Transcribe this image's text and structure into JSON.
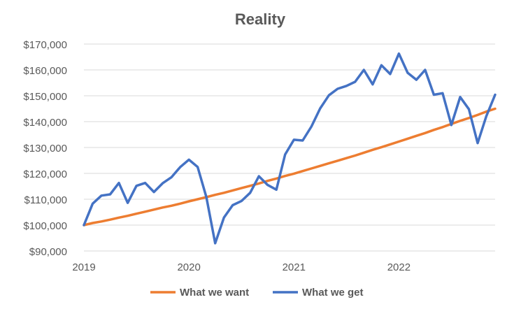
{
  "chart_data": {
    "type": "line",
    "title": "Reality",
    "xlabel": "",
    "ylabel": "",
    "x_start": "2019-01",
    "x_end": "2022-12",
    "xticks": [
      {
        "label": "2019",
        "date": "2019-01"
      },
      {
        "label": "2020",
        "date": "2020-01"
      },
      {
        "label": "2021",
        "date": "2021-01"
      },
      {
        "label": "2022",
        "date": "2022-01"
      }
    ],
    "ylim": [
      90000,
      170000
    ],
    "yticks": [
      {
        "value": 90000,
        "label": "$90,000"
      },
      {
        "value": 100000,
        "label": "$100,000"
      },
      {
        "value": 110000,
        "label": "$110,000"
      },
      {
        "value": 120000,
        "label": "$120,000"
      },
      {
        "value": 130000,
        "label": "$130,000"
      },
      {
        "value": 140000,
        "label": "$140,000"
      },
      {
        "value": 150000,
        "label": "$150,000"
      },
      {
        "value": 160000,
        "label": "$160,000"
      },
      {
        "value": 170000,
        "label": "$170,000"
      }
    ],
    "grid": true,
    "legend_position": "bottom",
    "series": [
      {
        "name": "What we want",
        "color": "#ED7D31",
        "x": [
          "2019-01",
          "2019-02",
          "2019-03",
          "2019-04",
          "2019-05",
          "2019-06",
          "2019-07",
          "2019-08",
          "2019-09",
          "2019-10",
          "2019-11",
          "2019-12",
          "2020-01",
          "2020-02",
          "2020-03",
          "2020-04",
          "2020-05",
          "2020-06",
          "2020-07",
          "2020-08",
          "2020-09",
          "2020-10",
          "2020-11",
          "2020-12",
          "2021-01",
          "2021-02",
          "2021-03",
          "2021-04",
          "2021-05",
          "2021-06",
          "2021-07",
          "2021-08",
          "2021-09",
          "2021-10",
          "2021-11",
          "2021-12",
          "2022-01",
          "2022-02",
          "2022-03",
          "2022-04",
          "2022-05",
          "2022-06",
          "2022-07",
          "2022-08",
          "2022-09",
          "2022-10",
          "2022-11",
          "2022-12"
        ],
        "values": [
          100000,
          100800,
          101400,
          102100,
          102900,
          103600,
          104400,
          105200,
          106000,
          106800,
          107500,
          108300,
          109200,
          110000,
          110800,
          111700,
          112500,
          113400,
          114300,
          115200,
          116100,
          117100,
          118000,
          119000,
          119900,
          120900,
          121900,
          122900,
          123900,
          124900,
          125900,
          126900,
          128000,
          129100,
          130100,
          131200,
          132300,
          133400,
          134500,
          135600,
          136800,
          137900,
          139100,
          140300,
          141400,
          142600,
          143900,
          145000
        ]
      },
      {
        "name": "What we get",
        "color": "#4472C4",
        "x": [
          "2019-01",
          "2019-02",
          "2019-03",
          "2019-04",
          "2019-05",
          "2019-06",
          "2019-07",
          "2019-08",
          "2019-09",
          "2019-10",
          "2019-11",
          "2019-12",
          "2020-01",
          "2020-02",
          "2020-03",
          "2020-04",
          "2020-05",
          "2020-06",
          "2020-07",
          "2020-08",
          "2020-09",
          "2020-10",
          "2020-11",
          "2020-12",
          "2021-01",
          "2021-02",
          "2021-03",
          "2021-04",
          "2021-05",
          "2021-06",
          "2021-07",
          "2021-08",
          "2021-09",
          "2021-10",
          "2021-11",
          "2021-12",
          "2022-01",
          "2022-02",
          "2022-03",
          "2022-04",
          "2022-05",
          "2022-06",
          "2022-07",
          "2022-08",
          "2022-09",
          "2022-10",
          "2022-11",
          "2022-12"
        ],
        "values": [
          100000,
          108300,
          111400,
          111900,
          116300,
          108600,
          115200,
          116300,
          112800,
          116200,
          118500,
          122400,
          125300,
          122500,
          110800,
          93000,
          102900,
          107700,
          109300,
          112500,
          118900,
          115500,
          113700,
          127300,
          133000,
          132700,
          138100,
          145100,
          150200,
          152700,
          153800,
          155400,
          160000,
          154400,
          161800,
          158400,
          166300,
          158900,
          156200,
          160000,
          150400,
          151000,
          138700,
          149500,
          144800,
          131700,
          142200,
          150400
        ]
      }
    ]
  }
}
